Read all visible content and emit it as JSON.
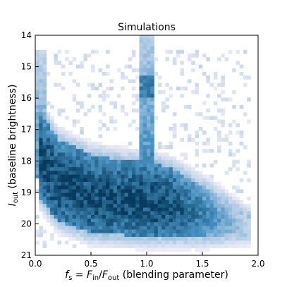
{
  "chart_data": {
    "type": "heatmap",
    "title": "Simulations",
    "xlabel": {
      "var": "f",
      "var_sub": "s",
      "eq": " = ",
      "num": "F",
      "num_sub": "in",
      "slash": "/",
      "den": "F",
      "den_sub": "out",
      "desc": " (blending parameter)"
    },
    "ylabel": {
      "var": "I",
      "var_sub": "out",
      "desc": " (baseline brightness)"
    },
    "xlim": [
      0.0,
      2.0
    ],
    "ylim": [
      21,
      14
    ],
    "y_inverted": true,
    "x_ticks": [
      "0.0",
      "0.5",
      "1.0",
      "1.5",
      "2.0"
    ],
    "y_ticks": [
      "14",
      "15",
      "16",
      "17",
      "18",
      "19",
      "20",
      "21"
    ],
    "grid": false,
    "colormap": "PuBu",
    "colors": {
      "low": "#fbf3fb",
      "mid": "#4a94c4",
      "high": "#063b5e"
    },
    "features": {
      "main_band_upper_edge": [
        [
          0.0,
          16.2
        ],
        [
          0.2,
          17.3
        ],
        [
          0.5,
          17.8
        ],
        [
          0.8,
          18.0
        ],
        [
          1.0,
          18.0
        ],
        [
          1.2,
          18.2
        ],
        [
          1.5,
          18.8
        ],
        [
          1.9,
          19.8
        ]
      ],
      "main_band_lower_edge": [
        [
          0.05,
          19.2
        ],
        [
          0.2,
          19.9
        ],
        [
          0.5,
          20.3
        ],
        [
          1.0,
          20.4
        ],
        [
          1.5,
          20.4
        ],
        [
          1.9,
          20.3
        ]
      ],
      "densest_region": {
        "x": [
          0.15,
          0.5
        ],
        "y": [
          18.3,
          19.3
        ]
      },
      "vertical_ridge": {
        "x": [
          0.95,
          1.08
        ],
        "y": [
          14.0,
          18.5
        ]
      },
      "left_edge_column": {
        "x": [
          0.0,
          0.1
        ],
        "y": [
          14.5,
          18.5
        ]
      }
    }
  }
}
